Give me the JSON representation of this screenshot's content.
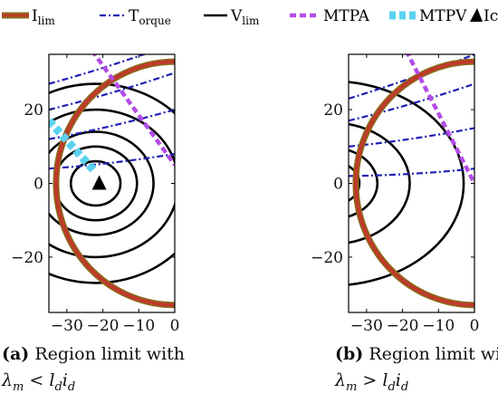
{
  "legend": [
    {
      "key": "ilim",
      "base": "I",
      "sub": "lim",
      "color": "#c0392b",
      "edge": "#8a6a1a"
    },
    {
      "key": "torque",
      "base": "T",
      "sub": "orque",
      "color": "#1f1fb4"
    },
    {
      "key": "vlim",
      "base": "V",
      "sub": "lim",
      "color": "#000000"
    },
    {
      "key": "mtpa",
      "base": "MTPA",
      "sub": "",
      "color": "#b44be6"
    },
    {
      "key": "mtpv",
      "base": "MTPV",
      "sub": "",
      "color": "#5ad2f0"
    },
    {
      "key": "icc",
      "base": "Icc",
      "sub": "",
      "color": "#000000",
      "icon": "triangle-icon"
    }
  ],
  "captions": [
    {
      "label": "(a)",
      "line1": "Region limit with",
      "rel": "<"
    },
    {
      "label": "(b)",
      "line1": "Region limit with",
      "rel": ">"
    }
  ],
  "chart_data": [
    {
      "type": "line",
      "panel": "a",
      "xlim": [
        -35,
        0
      ],
      "ylim": [
        -35,
        35
      ],
      "xticks": [
        -30,
        -20,
        -10,
        0
      ],
      "yticks": [
        -20,
        0,
        20
      ],
      "current_limit": {
        "center": [
          0,
          0
        ],
        "radius": 33
      },
      "voltage_limit": {
        "center": [
          -22,
          0
        ],
        "semi_y": [
          6,
          10,
          14,
          20,
          27
        ],
        "aspect": 1.15
      },
      "torque_curves": [
        {
          "x1": -35,
          "y1": 4,
          "x2": 0,
          "y2": 8
        },
        {
          "x1": -35,
          "y1": 12,
          "x2": 0,
          "y2": 20
        },
        {
          "x1": -35,
          "y1": 20,
          "x2": 0,
          "y2": 30
        },
        {
          "x1": -35,
          "y1": 27,
          "x2": 0,
          "y2": 38
        }
      ],
      "mtpa": {
        "x1": -23,
        "y1": 36,
        "x2": 0,
        "y2": 5
      },
      "mtpv": {
        "x1": -35,
        "y1": 17,
        "x2": -22,
        "y2": 3
      },
      "icc": {
        "x": -21,
        "y": 0
      }
    },
    {
      "type": "line",
      "panel": "b",
      "xlim": [
        -35,
        0
      ],
      "ylim": [
        -35,
        35
      ],
      "xticks": [
        -30,
        -20,
        -10,
        0
      ],
      "yticks": [
        -20,
        0,
        20
      ],
      "current_limit": {
        "center": [
          0,
          0
        ],
        "radius": 33
      },
      "voltage_limit": {
        "center": [
          -40,
          0
        ],
        "semi_x": [
          8,
          13,
          22,
          37
        ],
        "aspect": 0.75
      },
      "torque_curves": [
        {
          "x1": -35,
          "y1": 2,
          "x2": 0,
          "y2": 4
        },
        {
          "x1": -35,
          "y1": 10,
          "x2": 0,
          "y2": 15
        },
        {
          "x1": -35,
          "y1": 17,
          "x2": 0,
          "y2": 27
        },
        {
          "x1": -35,
          "y1": 23,
          "x2": 0,
          "y2": 35
        }
      ],
      "mtpa": {
        "x1": -19,
        "y1": 36,
        "x2": 0,
        "y2": 0
      }
    }
  ]
}
